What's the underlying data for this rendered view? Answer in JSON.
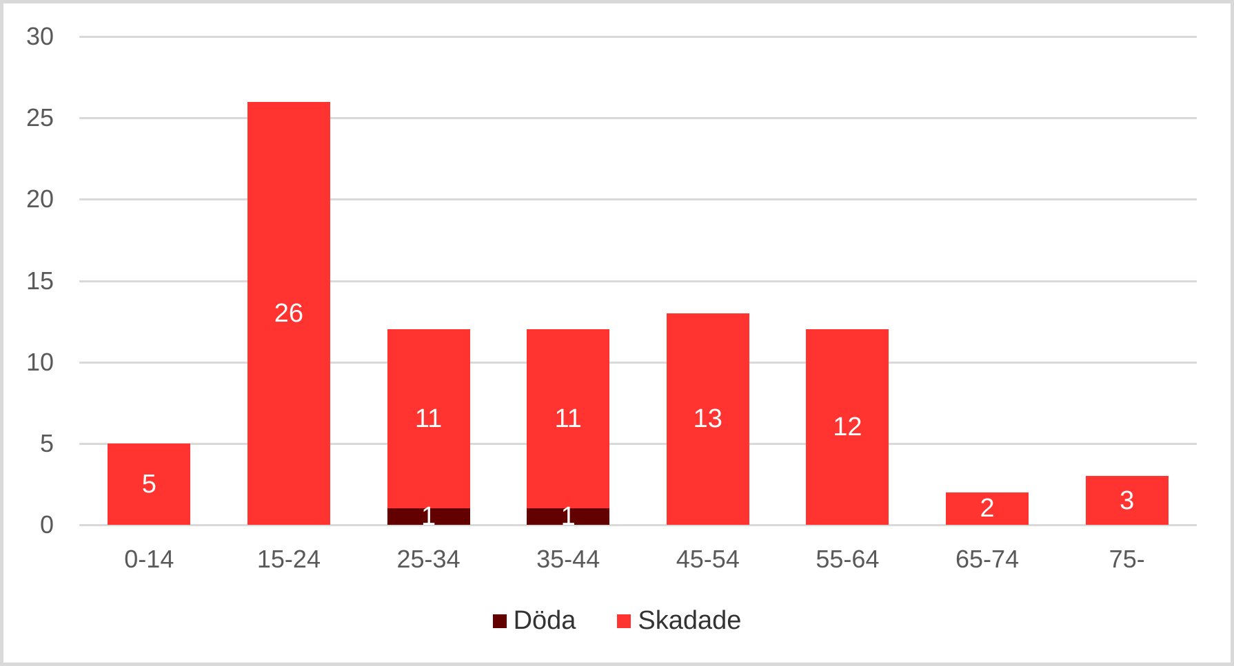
{
  "colors": {
    "doda": "#620000",
    "skadade": "#ff3330",
    "grid": "#d9d9d9",
    "axis_text": "#595959",
    "legend_text": "#333333",
    "border": "#d9d9d9"
  },
  "legend": {
    "items": [
      {
        "label": "Döda",
        "color": "#620000"
      },
      {
        "label": "Skadade",
        "color": "#ff3330"
      }
    ]
  },
  "chart_data": {
    "type": "bar",
    "stacked": true,
    "title": "",
    "xlabel": "",
    "ylabel": "",
    "ylim": [
      0,
      30
    ],
    "yticks": [
      0,
      5,
      10,
      15,
      20,
      25,
      30
    ],
    "grid": true,
    "legend_position": "bottom",
    "categories": [
      "0-14",
      "15-24",
      "25-34",
      "35-44",
      "45-54",
      "55-64",
      "65-74",
      "75-"
    ],
    "series": [
      {
        "name": "Döda",
        "color": "#620000",
        "values": [
          0,
          0,
          1,
          1,
          0,
          0,
          0,
          0
        ],
        "labels": [
          "",
          "",
          "1",
          "1",
          "",
          "",
          "",
          ""
        ]
      },
      {
        "name": "Skadade",
        "color": "#ff3330",
        "values": [
          5,
          26,
          11,
          11,
          13,
          12,
          2,
          3
        ],
        "labels": [
          "5",
          "26",
          "11",
          "11",
          "13",
          "12",
          "2",
          "3"
        ]
      }
    ]
  }
}
